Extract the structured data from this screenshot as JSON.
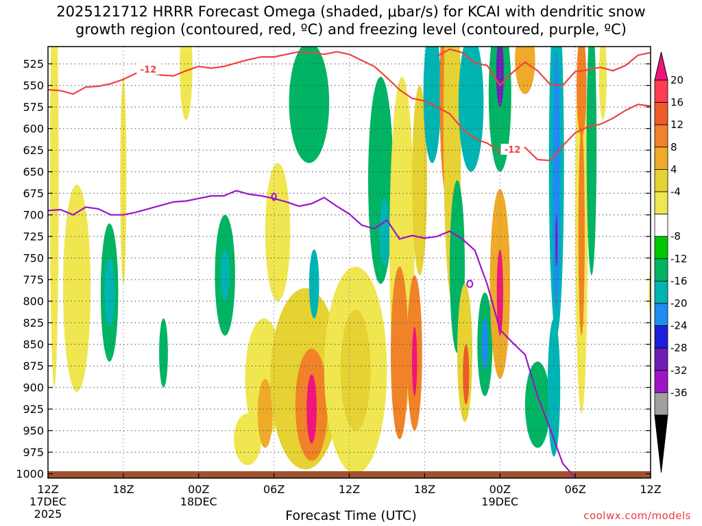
{
  "chart_data": {
    "type": "heatmap",
    "title_line1": "2025121712 HRRR Forecast Omega (shaded, μbar/s) for KCAI with dendritic snow",
    "title_line2": "growth region (contoured, red, ºC) and freezing level (contoured, purple, ºC)",
    "xlabel": "Forecast Time (UTC)",
    "ylabel": "",
    "credit": "coolwx.com/models",
    "y_axis": {
      "ticks": [
        525,
        550,
        575,
        600,
        625,
        650,
        675,
        700,
        725,
        750,
        775,
        800,
        825,
        850,
        875,
        900,
        925,
        950,
        975,
        1000
      ],
      "range": [
        505,
        1005
      ]
    },
    "x_axis": {
      "range_hours": [
        0,
        48
      ],
      "ticks": [
        {
          "hour": 0,
          "label": "12Z",
          "sub1": "17DEC",
          "sub2": "2025"
        },
        {
          "hour": 6,
          "label": "18Z",
          "sub1": "",
          "sub2": ""
        },
        {
          "hour": 12,
          "label": "00Z",
          "sub1": "18DEC",
          "sub2": ""
        },
        {
          "hour": 18,
          "label": "06Z",
          "sub1": "",
          "sub2": ""
        },
        {
          "hour": 24,
          "label": "12Z",
          "sub1": "",
          "sub2": ""
        },
        {
          "hour": 30,
          "label": "18Z",
          "sub1": "",
          "sub2": ""
        },
        {
          "hour": 36,
          "label": "00Z",
          "sub1": "19DEC",
          "sub2": ""
        },
        {
          "hour": 42,
          "label": "06Z",
          "sub1": "",
          "sub2": ""
        },
        {
          "hour": 48,
          "label": "12Z",
          "sub1": "",
          "sub2": ""
        }
      ]
    },
    "colorbar": {
      "labels": [
        "20",
        "16",
        "12",
        "8",
        "4",
        "-4",
        "-8",
        "-12",
        "-16",
        "-20",
        "-24",
        "-28",
        "-32",
        "-36"
      ],
      "colors": [
        "#ff3c50",
        "#ef5a28",
        "#f08228",
        "#eeaa28",
        "#e6d232",
        "#f0e650",
        "#ffffff",
        "#00c800",
        "#00b464",
        "#00b4b4",
        "#1e8cf0",
        "#1e1edc",
        "#6e1eb4",
        "#a014c8",
        "#a0a0a0"
      ],
      "top_color": "#f0147c",
      "bottom_color": "#000000"
    },
    "freezing_level": {
      "color": "#9b14c8",
      "label": "0",
      "points": [
        [
          0,
          695
        ],
        [
          1,
          694
        ],
        [
          2,
          700
        ],
        [
          3,
          691
        ],
        [
          4,
          693
        ],
        [
          5,
          700
        ],
        [
          6,
          700
        ],
        [
          7,
          697
        ],
        [
          8,
          693
        ],
        [
          9,
          689
        ],
        [
          10,
          685
        ],
        [
          11,
          684
        ],
        [
          12,
          681
        ],
        [
          13,
          678
        ],
        [
          14,
          678
        ],
        [
          15,
          672
        ],
        [
          16,
          676
        ],
        [
          17,
          678
        ],
        [
          18,
          681
        ],
        [
          19,
          685
        ],
        [
          20,
          690
        ],
        [
          21,
          687
        ],
        [
          22,
          680
        ],
        [
          23,
          690
        ],
        [
          24,
          699
        ],
        [
          25,
          712
        ],
        [
          26,
          716
        ],
        [
          27,
          706
        ],
        [
          28,
          728
        ],
        [
          29,
          724
        ],
        [
          30,
          727
        ],
        [
          31,
          725
        ],
        [
          32,
          719
        ],
        [
          33,
          728
        ],
        [
          34,
          741
        ],
        [
          35,
          781
        ],
        [
          36,
          833
        ],
        [
          37,
          848
        ],
        [
          38,
          862
        ],
        [
          39,
          910
        ],
        [
          40,
          948
        ],
        [
          41,
          988
        ],
        [
          42,
          1005
        ]
      ]
    },
    "dgz_contours": [
      {
        "label": "-12",
        "color": "#f04040",
        "points": [
          [
            0,
            555
          ],
          [
            1,
            556
          ],
          [
            2,
            560
          ],
          [
            3,
            552
          ],
          [
            4,
            551
          ],
          [
            5,
            548
          ],
          [
            6,
            543
          ],
          [
            7,
            536
          ],
          [
            8,
            535
          ],
          [
            9,
            538
          ],
          [
            10,
            539
          ],
          [
            11,
            533
          ],
          [
            12,
            528
          ],
          [
            13,
            530
          ],
          [
            14,
            528
          ],
          [
            15,
            524
          ],
          [
            16,
            520
          ],
          [
            17,
            517
          ],
          [
            18,
            517
          ],
          [
            19,
            514
          ],
          [
            20,
            511
          ],
          [
            21,
            512
          ],
          [
            22,
            514
          ],
          [
            23,
            511
          ],
          [
            24,
            514
          ],
          [
            25,
            521
          ],
          [
            26,
            528
          ],
          [
            27,
            541
          ],
          [
            28,
            555
          ],
          [
            29,
            565
          ],
          [
            30,
            568
          ],
          [
            31,
            575
          ],
          [
            32,
            583
          ],
          [
            33,
            600
          ],
          [
            34,
            612
          ],
          [
            35,
            617
          ],
          [
            36,
            627
          ],
          [
            37,
            627
          ],
          [
            38,
            622
          ],
          [
            39,
            636
          ],
          [
            40,
            637
          ],
          [
            41,
            620
          ],
          [
            42,
            605
          ],
          [
            43,
            598
          ],
          [
            44,
            595
          ],
          [
            45,
            588
          ],
          [
            46,
            579
          ],
          [
            47,
            572
          ],
          [
            48,
            574
          ]
        ]
      },
      {
        "label": "-12",
        "color": "#f04040",
        "points": [
          [
            31,
            516
          ],
          [
            32,
            508
          ],
          [
            33,
            512
          ],
          [
            34,
            524
          ],
          [
            35,
            527
          ],
          [
            36,
            550
          ],
          [
            37,
            535
          ],
          [
            38,
            523
          ],
          [
            39,
            533
          ],
          [
            40,
            549
          ],
          [
            41,
            550
          ],
          [
            42,
            534
          ],
          [
            43,
            532
          ],
          [
            44,
            529
          ],
          [
            45,
            533
          ],
          [
            46,
            527
          ],
          [
            47,
            515
          ],
          [
            48,
            512
          ]
        ]
      }
    ],
    "omega_blobs": [
      {
        "x": 0.5,
        "p": 660,
        "rx": 0.35,
        "ry": 240,
        "v": 7
      },
      {
        "x": 2.3,
        "p": 785,
        "rx": 1.1,
        "ry": 120,
        "v": 4
      },
      {
        "x": 4.9,
        "p": 790,
        "rx": 0.7,
        "ry": 80,
        "v": -8
      },
      {
        "x": 4.9,
        "p": 790,
        "rx": 0.4,
        "ry": 40,
        "v": -14
      },
      {
        "x": 6.0,
        "p": 660,
        "rx": 0.25,
        "ry": 120,
        "v": 4
      },
      {
        "x": 9.2,
        "p": 860,
        "rx": 0.35,
        "ry": 40,
        "v": -8
      },
      {
        "x": 11.0,
        "p": 530,
        "rx": 0.5,
        "ry": 60,
        "v": 4
      },
      {
        "x": 14.1,
        "p": 770,
        "rx": 0.8,
        "ry": 70,
        "v": -8
      },
      {
        "x": 14.1,
        "p": 770,
        "rx": 0.35,
        "ry": 30,
        "v": -14
      },
      {
        "x": 15.9,
        "p": 960,
        "rx": 1.1,
        "ry": 30,
        "v": 5
      },
      {
        "x": 17.2,
        "p": 890,
        "rx": 1.5,
        "ry": 70,
        "v": 6
      },
      {
        "x": 17.3,
        "p": 930,
        "rx": 0.6,
        "ry": 40,
        "v": 10
      },
      {
        "x": 18.0,
        "p": 700,
        "rx": 0.6,
        "ry": 40,
        "v": -8
      },
      {
        "x": 18.3,
        "p": 720,
        "rx": 1.0,
        "ry": 80,
        "v": 6
      },
      {
        "x": 20.5,
        "p": 890,
        "rx": 2.8,
        "ry": 105,
        "v": 8
      },
      {
        "x": 21.0,
        "p": 920,
        "rx": 1.3,
        "ry": 65,
        "v": 13
      },
      {
        "x": 21.0,
        "p": 925,
        "rx": 0.4,
        "ry": 40,
        "v": 20
      },
      {
        "x": 21.2,
        "p": 780,
        "rx": 0.4,
        "ry": 40,
        "v": -12
      },
      {
        "x": 20.8,
        "p": 570,
        "rx": 1.6,
        "ry": 70,
        "v": -8
      },
      {
        "x": 24.5,
        "p": 880,
        "rx": 2.5,
        "ry": 120,
        "v": 6
      },
      {
        "x": 24.5,
        "p": 880,
        "rx": 1.2,
        "ry": 70,
        "v": 9
      },
      {
        "x": 26.5,
        "p": 660,
        "rx": 1.0,
        "ry": 120,
        "v": -8
      },
      {
        "x": 26.8,
        "p": 720,
        "rx": 0.4,
        "ry": 40,
        "v": -14
      },
      {
        "x": 28.2,
        "p": 740,
        "rx": 1.0,
        "ry": 200,
        "v": 7
      },
      {
        "x": 28.0,
        "p": 860,
        "rx": 0.7,
        "ry": 100,
        "v": 12
      },
      {
        "x": 29.2,
        "p": 860,
        "rx": 0.6,
        "ry": 90,
        "v": 13
      },
      {
        "x": 29.2,
        "p": 870,
        "rx": 0.2,
        "ry": 40,
        "v": 20
      },
      {
        "x": 29.6,
        "p": 660,
        "rx": 0.6,
        "ry": 110,
        "v": 8
      },
      {
        "x": 30.6,
        "p": 560,
        "rx": 0.7,
        "ry": 80,
        "v": -12
      },
      {
        "x": 31.8,
        "p": 560,
        "rx": 0.6,
        "ry": 120,
        "v": 12
      },
      {
        "x": 32.2,
        "p": 600,
        "rx": 0.7,
        "ry": 200,
        "v": 8
      },
      {
        "x": 32.6,
        "p": 760,
        "rx": 0.6,
        "ry": 100,
        "v": -8
      },
      {
        "x": 33.2,
        "p": 860,
        "rx": 0.6,
        "ry": 80,
        "v": 8
      },
      {
        "x": 33.3,
        "p": 885,
        "rx": 0.25,
        "ry": 35,
        "v": 14
      },
      {
        "x": 34.8,
        "p": 850,
        "rx": 0.6,
        "ry": 60,
        "v": -8
      },
      {
        "x": 34.8,
        "p": 850,
        "rx": 0.25,
        "ry": 30,
        "v": -16
      },
      {
        "x": 33.7,
        "p": 570,
        "rx": 1.0,
        "ry": 80,
        "v": -12
      },
      {
        "x": 36.0,
        "p": 780,
        "rx": 0.8,
        "ry": 110,
        "v": 10
      },
      {
        "x": 36.0,
        "p": 790,
        "rx": 0.25,
        "ry": 50,
        "v": 20
      },
      {
        "x": 36.0,
        "p": 560,
        "rx": 0.9,
        "ry": 90,
        "v": -10
      },
      {
        "x": 36.0,
        "p": 535,
        "rx": 0.3,
        "ry": 40,
        "v": -24
      },
      {
        "x": 38.0,
        "p": 520,
        "rx": 0.8,
        "ry": 40,
        "v": 10
      },
      {
        "x": 39.0,
        "p": 920,
        "rx": 1.0,
        "ry": 50,
        "v": -10
      },
      {
        "x": 40.3,
        "p": 900,
        "rx": 0.5,
        "ry": 80,
        "v": -14
      },
      {
        "x": 40.5,
        "p": 640,
        "rx": 0.6,
        "ry": 200,
        "v": -12
      },
      {
        "x": 40.5,
        "p": 660,
        "rx": 0.3,
        "ry": 150,
        "v": -16
      },
      {
        "x": 40.5,
        "p": 730,
        "rx": 0.08,
        "ry": 30,
        "v": -24
      },
      {
        "x": 42.5,
        "p": 700,
        "rx": 0.5,
        "ry": 230,
        "v": 6
      },
      {
        "x": 42.5,
        "p": 720,
        "rx": 0.25,
        "ry": 120,
        "v": 12
      },
      {
        "x": 42.5,
        "p": 550,
        "rx": 0.4,
        "ry": 60,
        "v": 12
      },
      {
        "x": 43.3,
        "p": 620,
        "rx": 0.4,
        "ry": 150,
        "v": -8
      },
      {
        "x": 44.2,
        "p": 540,
        "rx": 0.3,
        "ry": 50,
        "v": 5
      },
      {
        "x": 48.0,
        "p": 790,
        "rx": 0.15,
        "ry": 25,
        "v": 5
      }
    ]
  }
}
